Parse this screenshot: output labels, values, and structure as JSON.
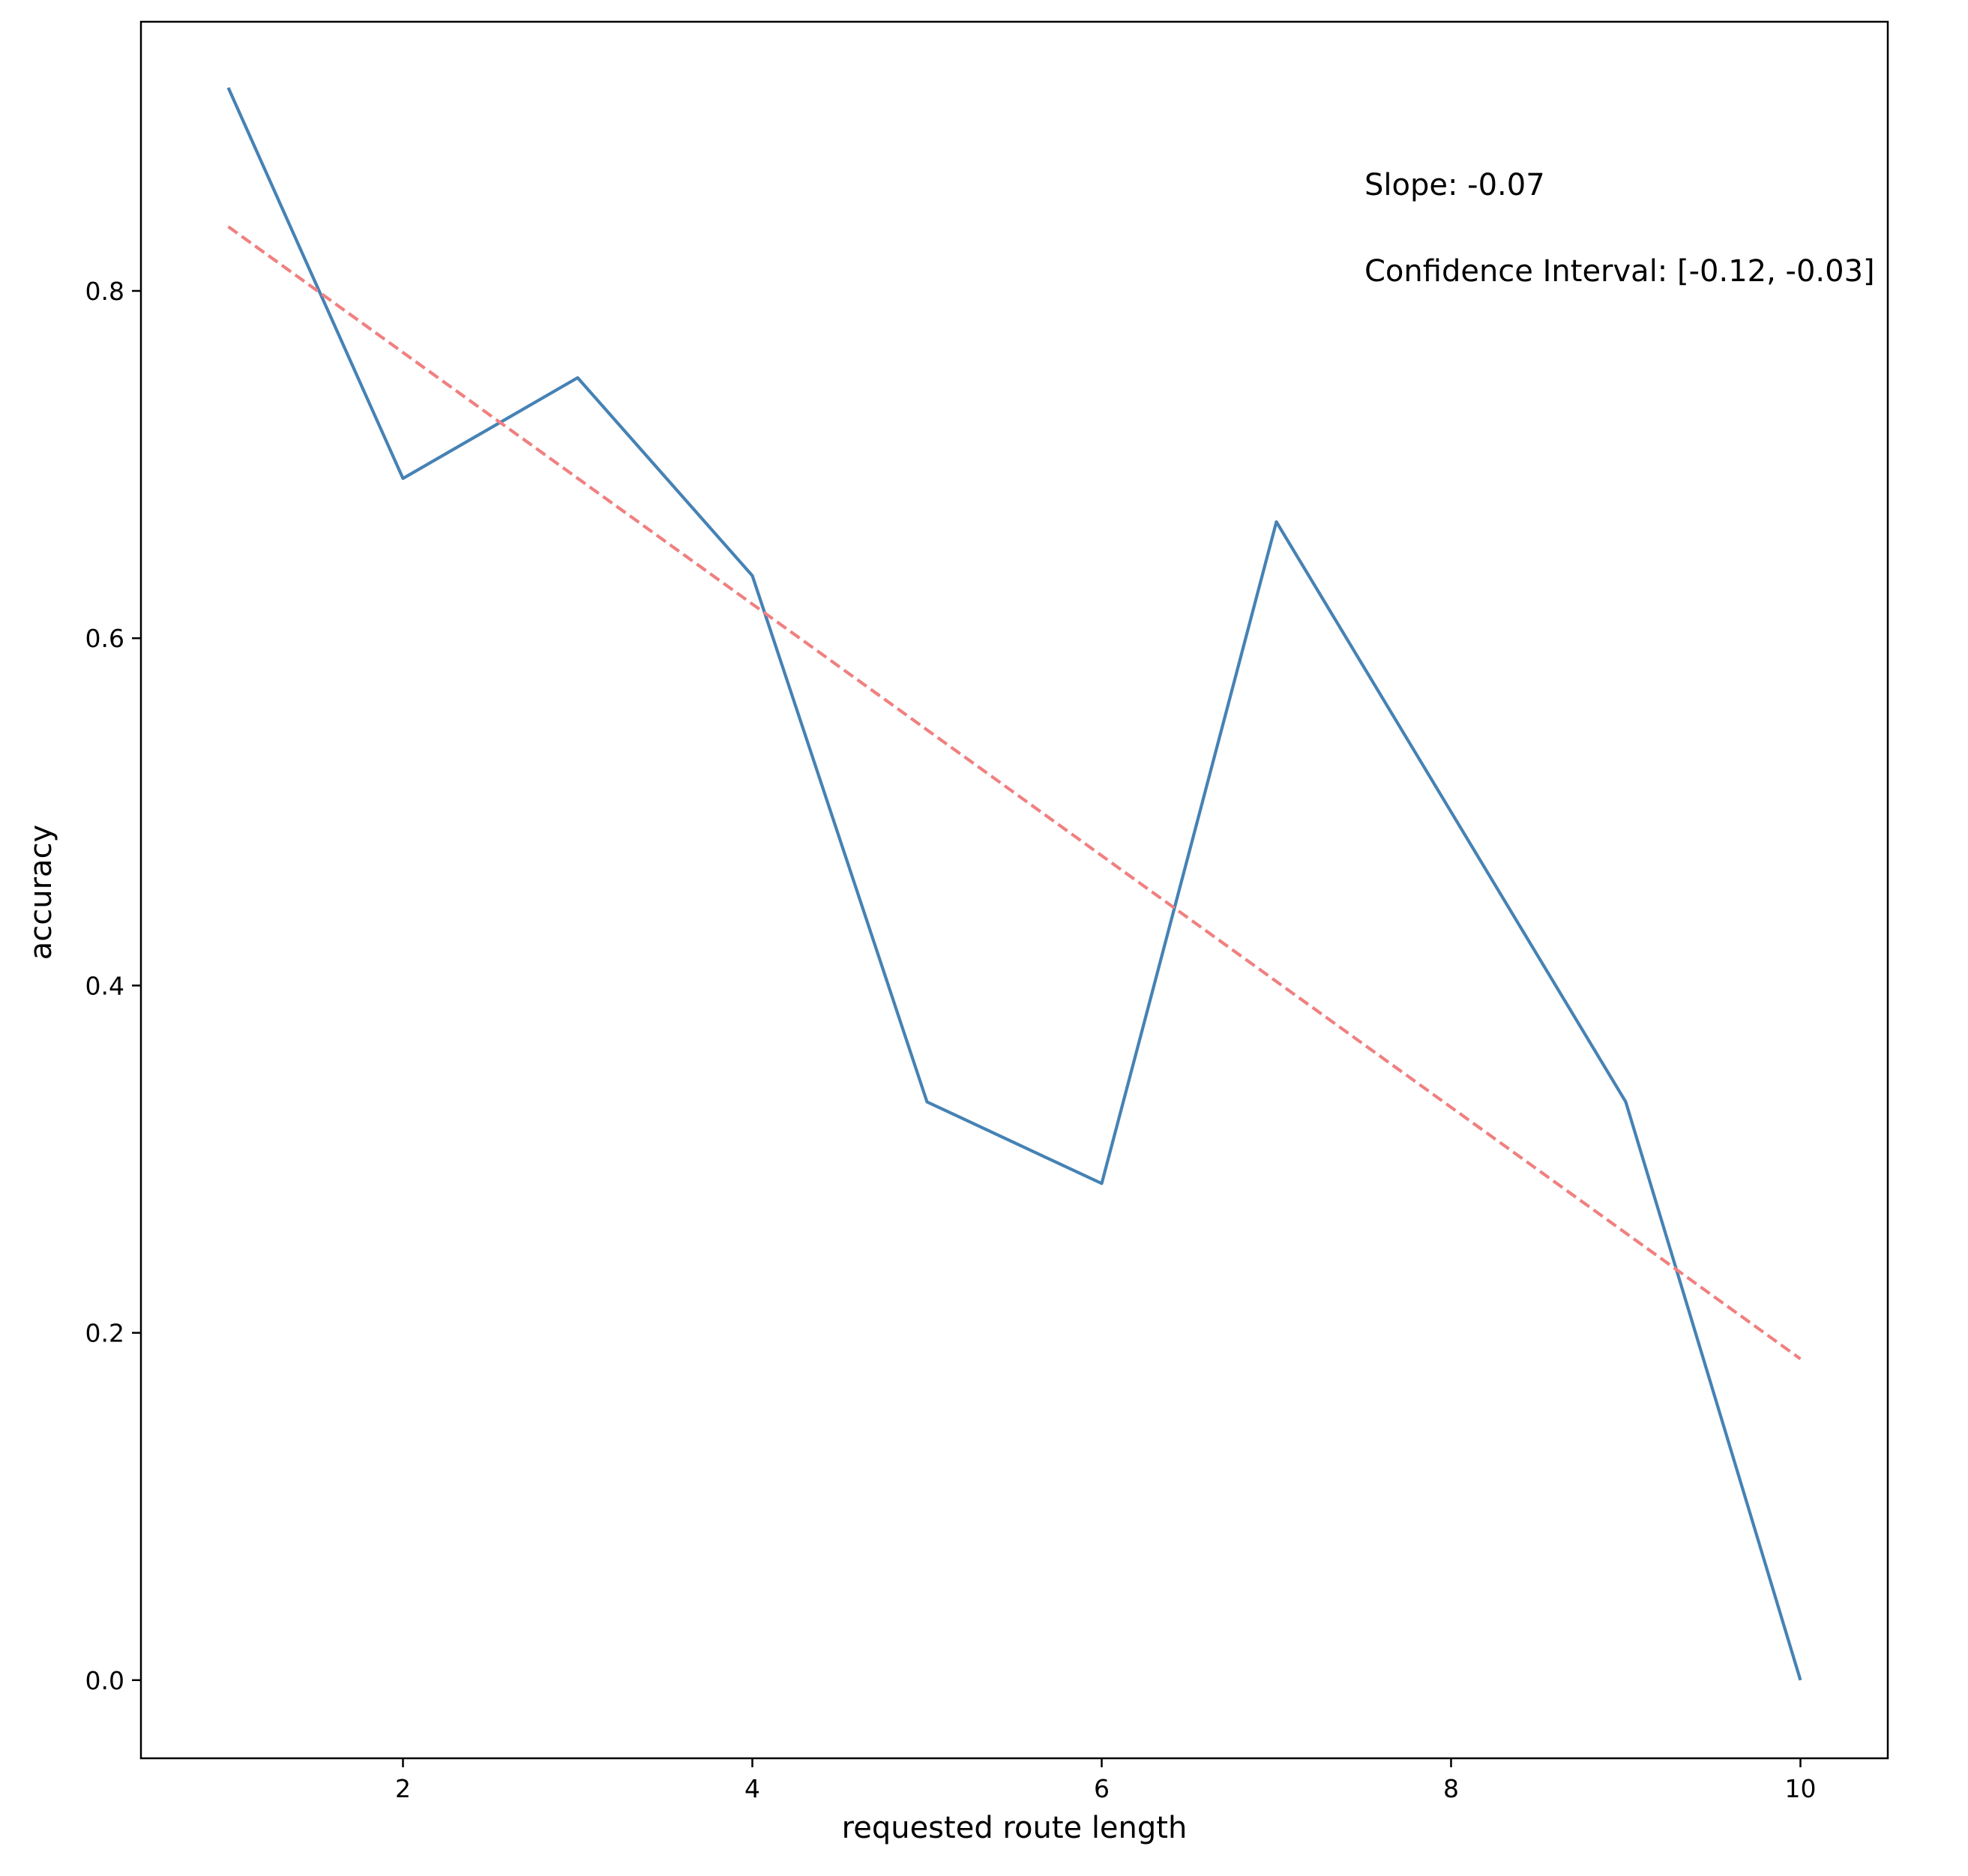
{
  "chart_data": {
    "type": "line",
    "title": "",
    "xlabel": "requested route length",
    "ylabel": "accuracy",
    "xlim": [
      0.5,
      10.5
    ],
    "ylim": [
      -0.045,
      0.955
    ],
    "xticks": [
      2,
      4,
      6,
      8,
      10
    ],
    "xtick_labels": [
      "2",
      "4",
      "6",
      "8",
      "10"
    ],
    "yticks": [
      0.0,
      0.2,
      0.4,
      0.6,
      0.8
    ],
    "ytick_labels": [
      "0.0",
      "0.2",
      "0.4",
      "0.6",
      "0.8"
    ],
    "grid": false,
    "legend": "none",
    "series": [
      {
        "style": "solid",
        "color": "#4682b4",
        "x": [
          1,
          2,
          3,
          4,
          5,
          6,
          7,
          8,
          9,
          10
        ],
        "y": [
          0.917,
          0.692,
          0.75,
          0.636,
          0.333,
          0.286,
          0.667,
          0.5,
          0.333,
          0.0
        ]
      },
      {
        "style": "dashed",
        "color": "#f08080",
        "x": [
          1,
          10
        ],
        "y": [
          0.837,
          0.185
        ]
      }
    ],
    "annotations": [
      "Slope: -0.07",
      "Confidence Interval: [-0.12, -0.03]"
    ]
  }
}
